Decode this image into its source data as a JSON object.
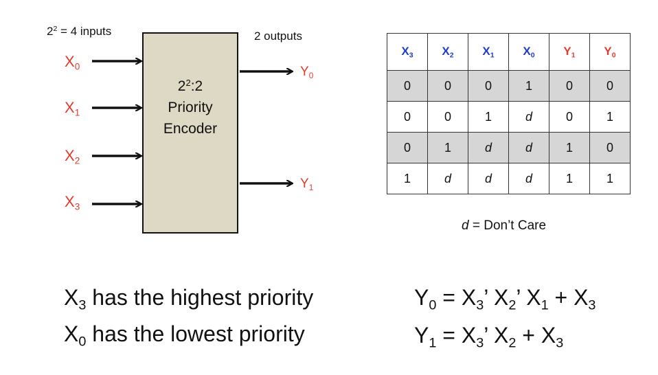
{
  "diagram": {
    "inputs_caption": "2² = 4 inputs",
    "outputs_caption": "2 outputs",
    "encoder_line1": "2²:2",
    "encoder_line2": "Priority",
    "encoder_line3": "Encoder",
    "inputs": [
      "X0",
      "X1",
      "X2",
      "X3"
    ],
    "outputs": [
      "Y0",
      "Y1"
    ]
  },
  "table": {
    "headers": [
      "X3",
      "X2",
      "X1",
      "X0",
      "Y1",
      "Y0"
    ],
    "rows": [
      [
        "0",
        "0",
        "0",
        "1",
        "0",
        "0"
      ],
      [
        "0",
        "0",
        "1",
        "d",
        "0",
        "1"
      ],
      [
        "0",
        "1",
        "d",
        "d",
        "1",
        "0"
      ],
      [
        "1",
        "d",
        "d",
        "d",
        "1",
        "1"
      ]
    ],
    "note_symbol": "d",
    "note_text": " = Don’t Care"
  },
  "statements": {
    "highest": "X3 has the highest priority",
    "lowest": "X0 has the lowest priority"
  },
  "equations": {
    "y0": "Y0 = X3’ X2’ X1 + X3",
    "y1": "Y1 = X3’ X2 + X3"
  },
  "colors": {
    "io_red": "#e23b2e",
    "header_blue": "#1f3cc7",
    "encoder_fill": "#ddd9c4",
    "shaded_row": "#d6d6d6"
  }
}
